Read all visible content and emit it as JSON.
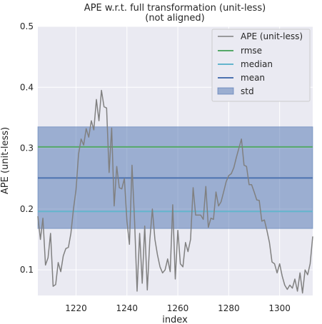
{
  "chart_data": {
    "type": "line",
    "title_line1": "APE w.r.t. full transformation (unit-less)",
    "title_line2": "(not aligned)",
    "xlabel": "index",
    "ylabel": "APE (unit-less)",
    "xlim": [
      1205,
      1313
    ],
    "ylim": [
      0.058,
      0.5
    ],
    "xticks": [
      1220,
      1240,
      1260,
      1280,
      1300
    ],
    "yticks": [
      0.1,
      0.2,
      0.3,
      0.4,
      0.5
    ],
    "ytick_labels": [
      "0.1",
      "0.2",
      "0.3",
      "0.4",
      "0.5"
    ],
    "grid": true,
    "legend_position": "top-right",
    "colors": {
      "background": "#eaeaf2",
      "grid": "#ffffff",
      "ape": "#808080",
      "rmse": "#55a868",
      "median": "#64b5cd",
      "mean": "#4c72b0",
      "std": "#4c72b0"
    },
    "series": [
      {
        "name": "APE (unit-less)",
        "x": [
          1205,
          1206,
          1207,
          1208,
          1209,
          1210,
          1211,
          1212,
          1213,
          1214,
          1215,
          1216,
          1217,
          1218,
          1219,
          1220,
          1221,
          1222,
          1223,
          1224,
          1225,
          1226,
          1227,
          1228,
          1229,
          1230,
          1231,
          1232,
          1233,
          1234,
          1235,
          1236,
          1237,
          1238,
          1239,
          1240,
          1241,
          1242,
          1243,
          1244,
          1245,
          1246,
          1247,
          1248,
          1249,
          1250,
          1251,
          1252,
          1253,
          1254,
          1255,
          1256,
          1257,
          1258,
          1259,
          1260,
          1261,
          1262,
          1263,
          1264,
          1265,
          1266,
          1267,
          1268,
          1269,
          1270,
          1271,
          1272,
          1273,
          1274,
          1275,
          1276,
          1277,
          1278,
          1279,
          1280,
          1281,
          1282,
          1283,
          1284,
          1285,
          1286,
          1287,
          1288,
          1289,
          1290,
          1291,
          1292,
          1293,
          1294,
          1295,
          1296,
          1297,
          1298,
          1299,
          1300,
          1301,
          1302,
          1303,
          1304,
          1305,
          1306,
          1307,
          1308,
          1309,
          1310,
          1311,
          1312,
          1313
        ],
        "values": [
          0.188,
          0.15,
          0.185,
          0.108,
          0.12,
          0.16,
          0.073,
          0.076,
          0.112,
          0.097,
          0.123,
          0.135,
          0.137,
          0.16,
          0.2,
          0.232,
          0.29,
          0.315,
          0.305,
          0.332,
          0.318,
          0.345,
          0.33,
          0.38,
          0.345,
          0.395,
          0.368,
          0.366,
          0.26,
          0.333,
          0.205,
          0.27,
          0.235,
          0.233,
          0.25,
          0.18,
          0.142,
          0.272,
          0.18,
          0.065,
          0.16,
          0.078,
          0.172,
          0.067,
          0.15,
          0.2,
          0.15,
          0.125,
          0.105,
          0.095,
          0.1,
          0.118,
          0.097,
          0.207,
          0.085,
          0.165,
          0.11,
          0.105,
          0.145,
          0.13,
          0.15,
          0.235,
          0.19,
          0.19,
          0.19,
          0.183,
          0.237,
          0.17,
          0.185,
          0.183,
          0.228,
          0.205,
          0.212,
          0.228,
          0.245,
          0.255,
          0.258,
          0.268,
          0.285,
          0.3,
          0.315,
          0.272,
          0.27,
          0.24,
          0.24,
          0.228,
          0.215,
          0.214,
          0.18,
          0.182,
          0.165,
          0.145,
          0.113,
          0.11,
          0.095,
          0.11,
          0.09,
          0.075,
          0.068,
          0.075,
          0.07,
          0.085,
          0.065,
          0.095,
          0.062,
          0.1,
          0.092,
          0.11,
          0.155
        ]
      },
      {
        "name": "rmse",
        "value": 0.302
      },
      {
        "name": "median",
        "value": 0.196
      },
      {
        "name": "mean",
        "value": 0.251
      },
      {
        "name": "std",
        "range": [
          0.168,
          0.335
        ]
      }
    ]
  }
}
